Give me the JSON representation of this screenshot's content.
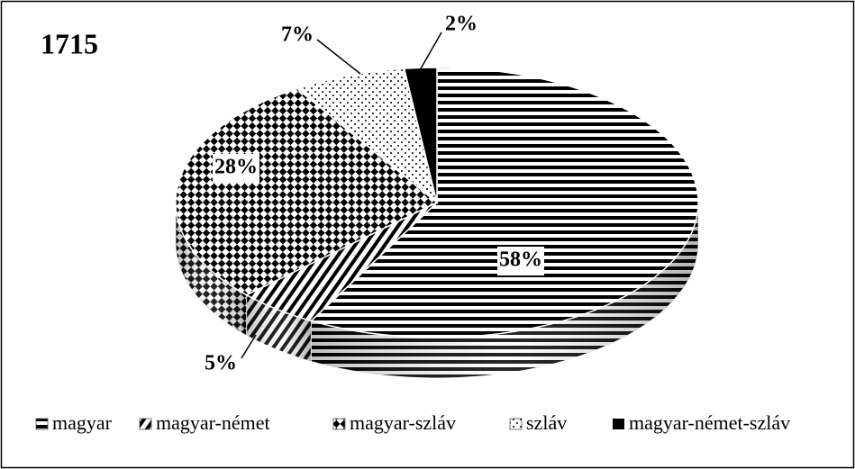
{
  "chart_data": {
    "type": "pie",
    "title": "1715",
    "categories": [
      "magyar",
      "magyar-német",
      "magyar-szláv",
      "szláv",
      "magyar-német-szláv"
    ],
    "values": [
      58,
      5,
      28,
      7,
      2
    ],
    "value_labels": [
      "58%",
      "5%",
      "28%",
      "7%",
      "2%"
    ],
    "legend": "bottom"
  }
}
